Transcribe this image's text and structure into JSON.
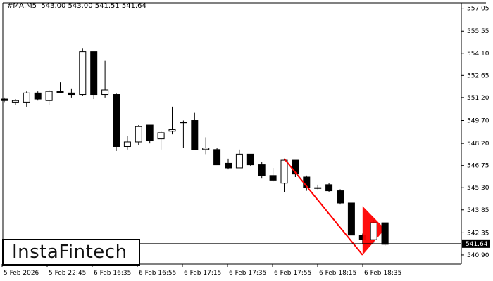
{
  "header": {
    "symbol": "#MA,M5",
    "ohlc": "543.00 543.00 541.51 541.64"
  },
  "logo": {
    "text": "InstaFintech"
  },
  "colors": {
    "background": "#ffffff",
    "candle": "#000000",
    "pattern": "#ff0000"
  },
  "chart_data": {
    "type": "candlestick",
    "symbol": "#MA,M5",
    "ylim": [
      540.3,
      557.4
    ],
    "y_ticks": [
      "557.05",
      "555.55",
      "554.10",
      "552.65",
      "551.20",
      "549.70",
      "548.20",
      "546.75",
      "545.30",
      "543.85",
      "542.35",
      "540.90"
    ],
    "x_ticks": [
      "5 Feb 2026",
      "5 Feb 22:45",
      "6 Feb 16:35",
      "6 Feb 16:55",
      "6 Feb 17:15",
      "6 Feb 17:35",
      "6 Feb 17:55",
      "6 Feb 18:15",
      "6 Feb 18:35"
    ],
    "last_price": "541.64",
    "candles": [
      {
        "o": 551.1,
        "h": 551.2,
        "l": 550.9,
        "c": 551.0
      },
      {
        "o": 550.9,
        "h": 551.1,
        "l": 550.7,
        "c": 551.0
      },
      {
        "o": 550.9,
        "h": 551.6,
        "l": 550.6,
        "c": 551.5
      },
      {
        "o": 551.5,
        "h": 551.6,
        "l": 551.0,
        "c": 551.1
      },
      {
        "o": 551.0,
        "h": 551.7,
        "l": 550.7,
        "c": 551.6
      },
      {
        "o": 551.6,
        "h": 552.2,
        "l": 551.5,
        "c": 551.5
      },
      {
        "o": 551.5,
        "h": 551.8,
        "l": 551.2,
        "c": 551.4
      },
      {
        "o": 551.4,
        "h": 554.4,
        "l": 551.3,
        "c": 554.2
      },
      {
        "o": 554.2,
        "h": 554.2,
        "l": 551.1,
        "c": 551.4
      },
      {
        "o": 551.4,
        "h": 553.6,
        "l": 551.2,
        "c": 551.7
      },
      {
        "o": 551.4,
        "h": 551.5,
        "l": 547.7,
        "c": 548.0
      },
      {
        "o": 548.0,
        "h": 548.7,
        "l": 547.8,
        "c": 548.3
      },
      {
        "o": 548.3,
        "h": 549.4,
        "l": 548.1,
        "c": 549.3
      },
      {
        "o": 549.4,
        "h": 549.4,
        "l": 548.2,
        "c": 548.4
      },
      {
        "o": 548.5,
        "h": 549.0,
        "l": 547.8,
        "c": 548.9
      },
      {
        "o": 549.0,
        "h": 550.6,
        "l": 548.8,
        "c": 549.1
      },
      {
        "o": 549.6,
        "h": 549.7,
        "l": 547.9,
        "c": 549.6
      },
      {
        "o": 549.7,
        "h": 550.2,
        "l": 547.8,
        "c": 547.8
      },
      {
        "o": 547.8,
        "h": 548.6,
        "l": 547.5,
        "c": 547.9
      },
      {
        "o": 547.8,
        "h": 547.9,
        "l": 546.8,
        "c": 546.8
      },
      {
        "o": 546.9,
        "h": 547.2,
        "l": 546.5,
        "c": 546.6
      },
      {
        "o": 546.6,
        "h": 547.8,
        "l": 546.6,
        "c": 547.5
      },
      {
        "o": 547.5,
        "h": 547.5,
        "l": 546.7,
        "c": 546.8
      },
      {
        "o": 546.8,
        "h": 547.0,
        "l": 545.9,
        "c": 546.1
      },
      {
        "o": 546.1,
        "h": 546.6,
        "l": 545.7,
        "c": 545.8
      },
      {
        "o": 545.6,
        "h": 547.2,
        "l": 545.0,
        "c": 547.1
      },
      {
        "o": 547.1,
        "h": 547.1,
        "l": 546.0,
        "c": 546.2
      },
      {
        "o": 546.0,
        "h": 546.1,
        "l": 545.1,
        "c": 545.3
      },
      {
        "o": 545.3,
        "h": 545.5,
        "l": 545.2,
        "c": 545.3
      },
      {
        "o": 545.5,
        "h": 545.6,
        "l": 545.0,
        "c": 545.1
      },
      {
        "o": 545.1,
        "h": 545.2,
        "l": 544.2,
        "c": 544.3
      },
      {
        "o": 544.3,
        "h": 544.3,
        "l": 542.2,
        "c": 542.2
      },
      {
        "o": 542.2,
        "h": 542.3,
        "l": 541.6,
        "c": 541.9
      },
      {
        "o": 541.9,
        "h": 543.2,
        "l": 541.7,
        "c": 543.0
      },
      {
        "o": 543.0,
        "h": 543.0,
        "l": 541.5,
        "c": 541.6
      }
    ],
    "pattern": {
      "name": "Bearish Pennant",
      "pole": {
        "from_index": 25,
        "from_price": 547.2,
        "to_index": 32,
        "to_price": 540.9
      },
      "flag": [
        {
          "index": 32,
          "price": 540.9
        },
        {
          "index": 32,
          "price": 544.1
        },
        {
          "index": 34,
          "price": 542.6
        }
      ]
    }
  }
}
